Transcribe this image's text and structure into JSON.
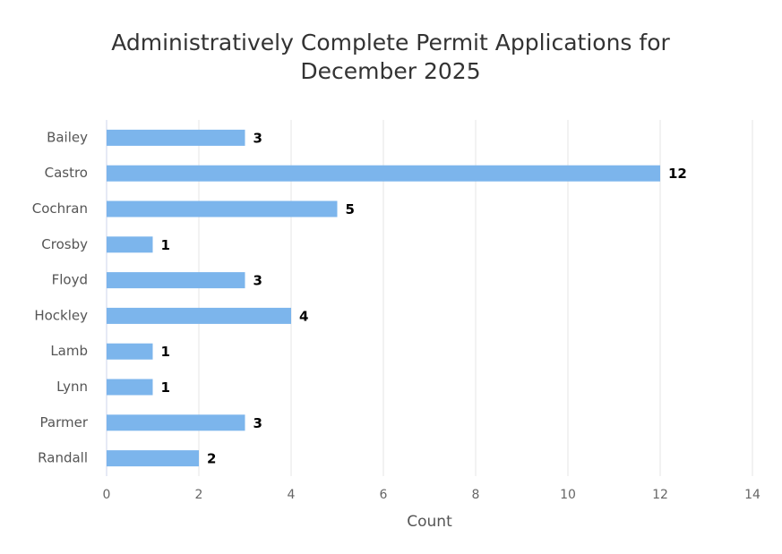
{
  "chart_data": {
    "type": "bar",
    "orientation": "horizontal",
    "title": "Administratively Complete Permit Applications for December 2025",
    "categories": [
      "Bailey",
      "Castro",
      "Cochran",
      "Crosby",
      "Floyd",
      "Hockley",
      "Lamb",
      "Lynn",
      "Parmer",
      "Randall"
    ],
    "values": [
      3,
      12,
      5,
      1,
      3,
      4,
      1,
      1,
      3,
      2
    ],
    "color": "#7cb5ec",
    "xlabel": "Count",
    "xlim": [
      0,
      14
    ],
    "xticks": [
      0,
      2,
      4,
      6,
      8,
      10,
      12,
      14
    ],
    "grid": true,
    "data_labels": true
  }
}
